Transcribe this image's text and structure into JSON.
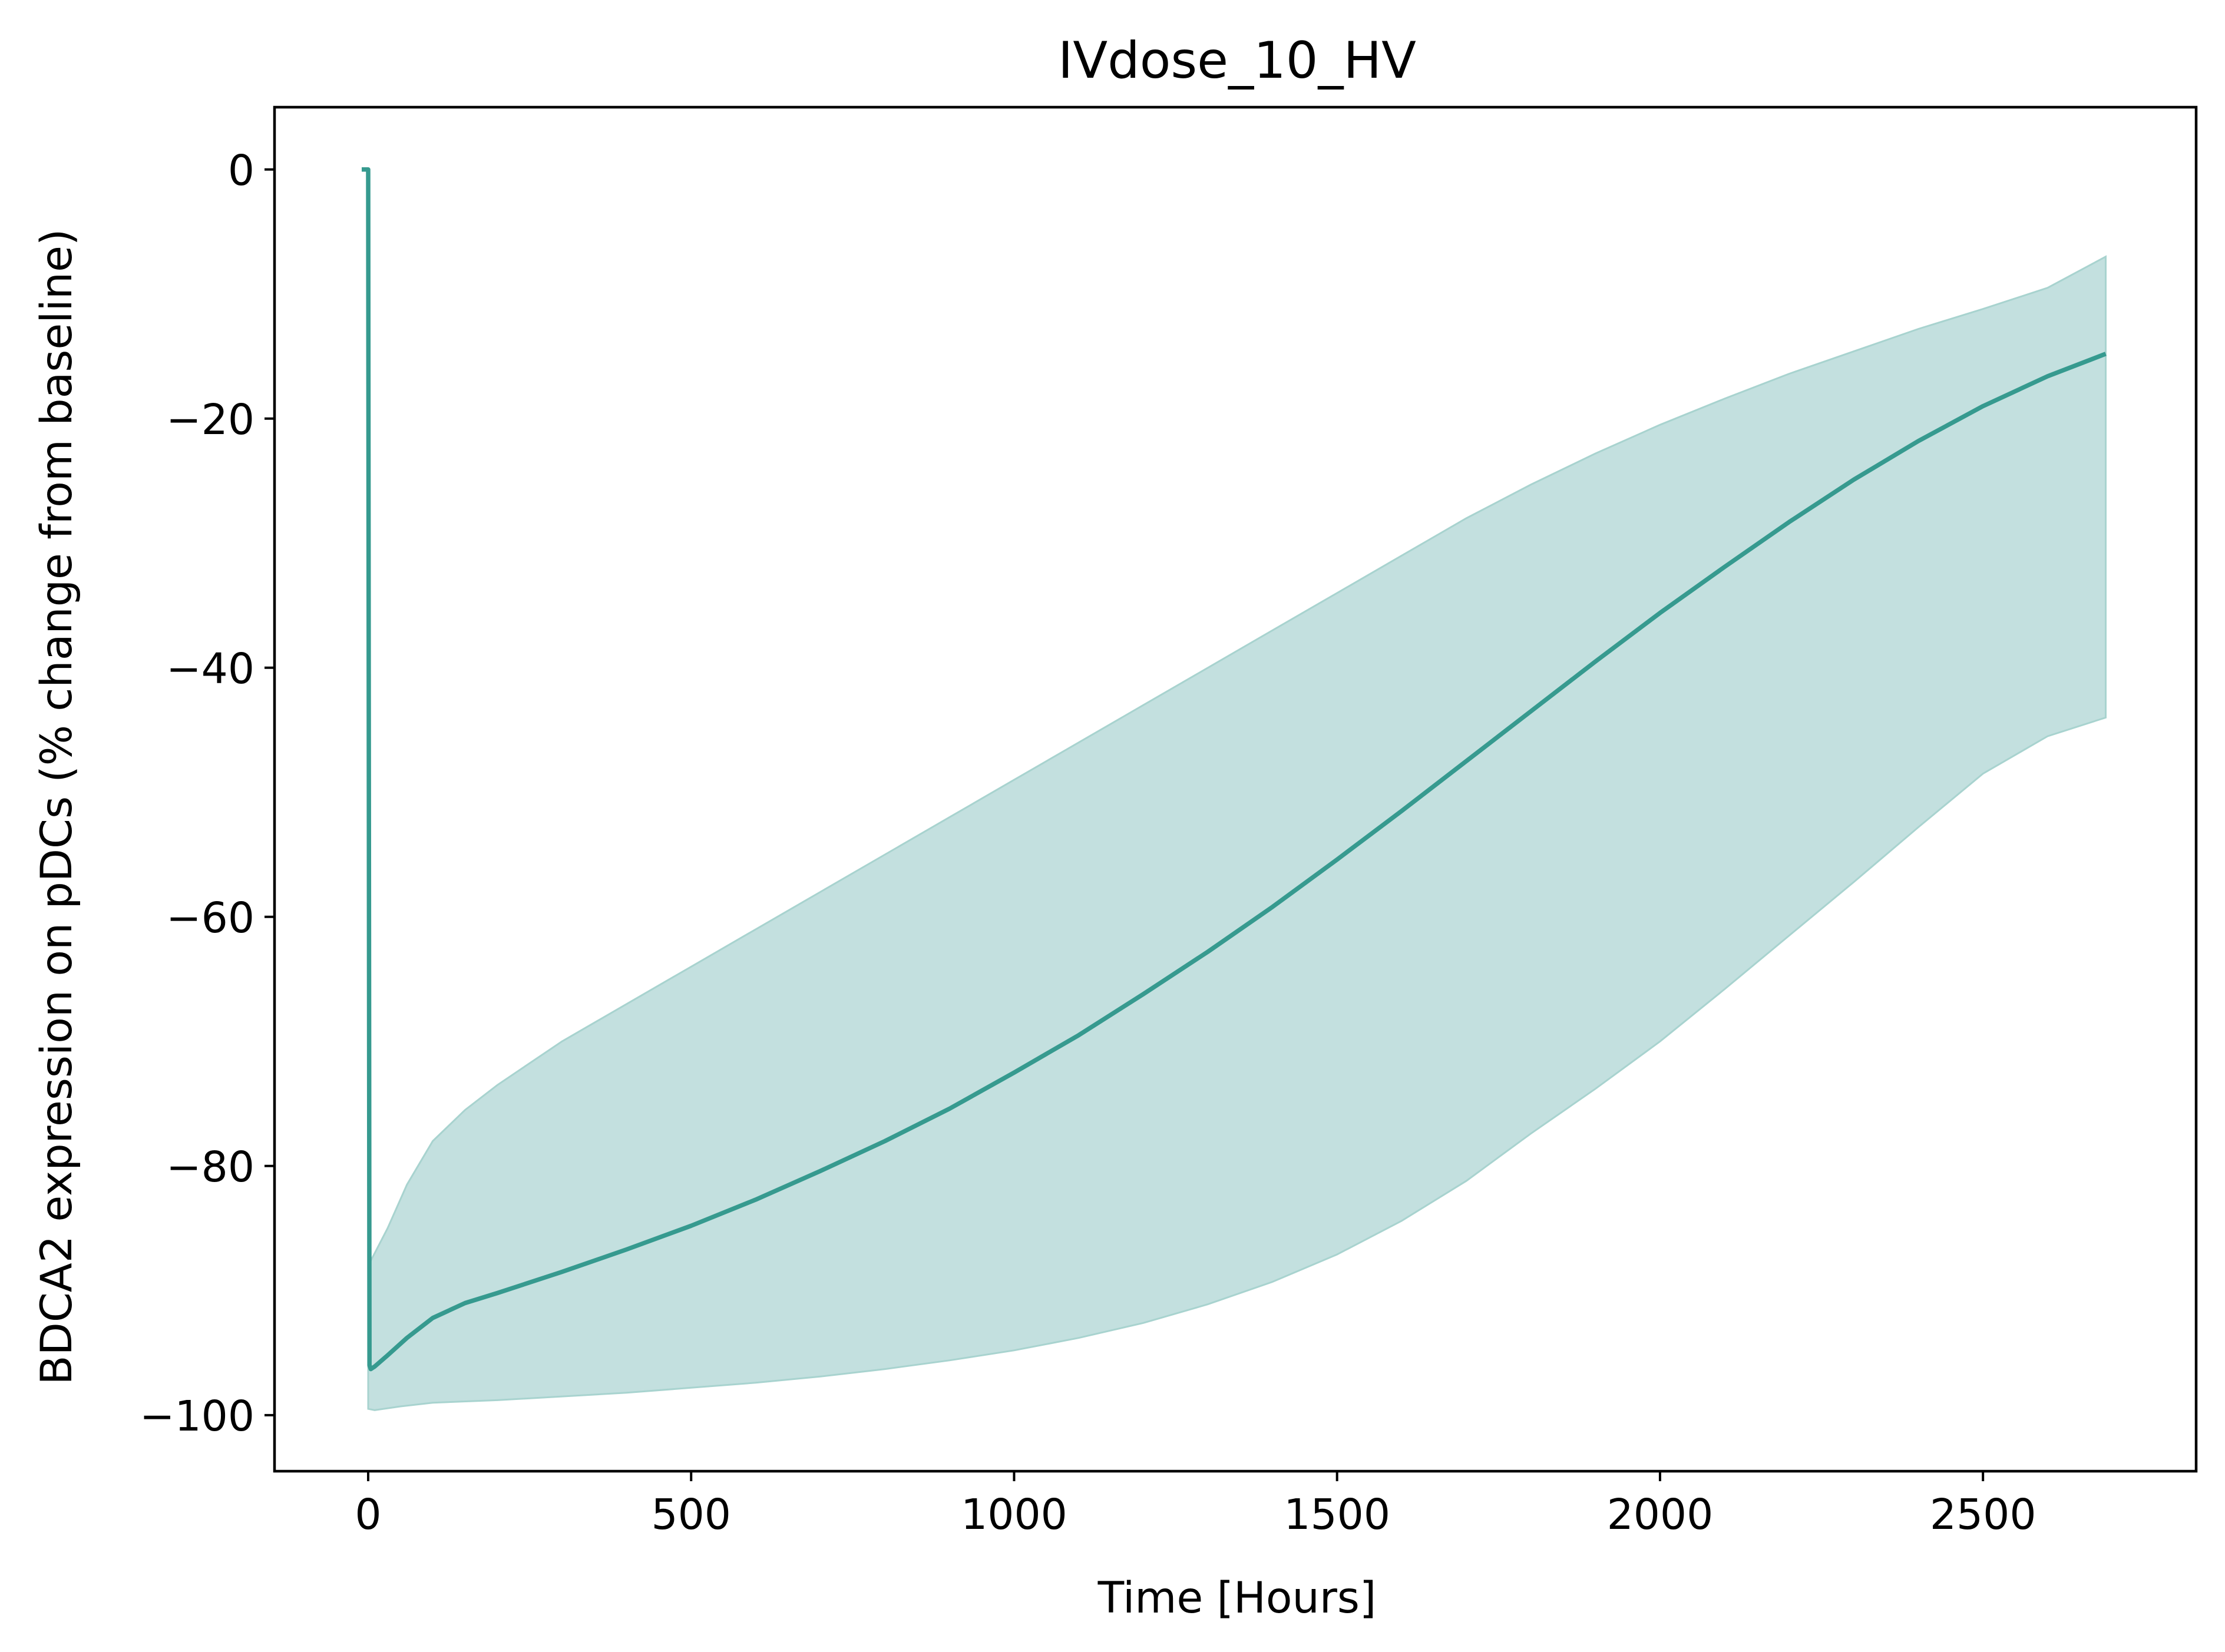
{
  "chart_data": {
    "type": "line",
    "title": "IVdose_10_HV",
    "xlabel": "Time [Hours]",
    "ylabel": "BDCA2 expression on pDCs (% change from baseline)",
    "xlim": [
      -145,
      2830
    ],
    "ylim": [
      -104.5,
      5.0
    ],
    "xticks": [
      0,
      500,
      1000,
      1500,
      2000,
      2500
    ],
    "xtick_labels": [
      "0",
      "500",
      "1000",
      "1500",
      "2000",
      "2500"
    ],
    "yticks": [
      0,
      -20,
      -40,
      -60,
      -80,
      -100
    ],
    "ytick_labels": [
      "0",
      "−20",
      "−40",
      "−60",
      "−80",
      "−100"
    ],
    "grid": false,
    "legend": "none",
    "colors": {
      "line": "#369a8f",
      "band": "#c3e0df",
      "band_edge": "#a8d3cf"
    },
    "series": [
      {
        "role": "median",
        "x": [
          -10,
          0,
          2,
          4,
          10,
          30,
          60,
          100,
          150,
          200,
          300,
          400,
          500,
          600,
          700,
          800,
          900,
          1000,
          1100,
          1200,
          1300,
          1400,
          1500,
          1600,
          1700,
          1800,
          1900,
          2000,
          2100,
          2200,
          2300,
          2400,
          2500,
          2600,
          2690
        ],
        "y": [
          0,
          0,
          -96,
          -96.3,
          -96.1,
          -95.2,
          -93.8,
          -92.2,
          -91,
          -90.2,
          -88.5,
          -86.7,
          -84.8,
          -82.7,
          -80.4,
          -78,
          -75.4,
          -72.5,
          -69.5,
          -66.2,
          -62.8,
          -59.2,
          -55.4,
          -51.5,
          -47.5,
          -43.5,
          -39.5,
          -35.6,
          -31.9,
          -28.3,
          -24.9,
          -21.8,
          -19,
          -16.6,
          -14.8
        ]
      },
      {
        "role": "upper-bound",
        "x": [
          0,
          10,
          30,
          60,
          100,
          150,
          200,
          300,
          400,
          500,
          600,
          700,
          800,
          900,
          1000,
          1100,
          1200,
          1300,
          1400,
          1500,
          1600,
          1700,
          1800,
          1900,
          2000,
          2100,
          2200,
          2300,
          2400,
          2500,
          2600,
          2690
        ],
        "y": [
          -88,
          -87,
          -85,
          -81.5,
          -78,
          -75.5,
          -73.5,
          -70,
          -67,
          -64,
          -61,
          -58,
          -55,
          -52,
          -49,
          -46,
          -43,
          -40,
          -37,
          -34,
          -31,
          -28,
          -25.3,
          -22.8,
          -20.5,
          -18.4,
          -16.4,
          -14.6,
          -12.8,
          -11.2,
          -9.5,
          -7
        ]
      },
      {
        "role": "lower-bound",
        "x": [
          0,
          10,
          50,
          100,
          200,
          300,
          400,
          500,
          600,
          700,
          800,
          900,
          1000,
          1100,
          1200,
          1300,
          1400,
          1500,
          1600,
          1700,
          1800,
          1900,
          2000,
          2100,
          2200,
          2300,
          2400,
          2500,
          2600,
          2690
        ],
        "y": [
          -99.5,
          -99.6,
          -99.3,
          -99,
          -98.8,
          -98.5,
          -98.2,
          -97.8,
          -97.4,
          -96.9,
          -96.3,
          -95.6,
          -94.8,
          -93.8,
          -92.6,
          -91.1,
          -89.3,
          -87.1,
          -84.4,
          -81.2,
          -77.4,
          -73.8,
          -70,
          -65.8,
          -61.5,
          -57.2,
          -52.8,
          -48.5,
          -45.5,
          -44
        ]
      }
    ]
  }
}
